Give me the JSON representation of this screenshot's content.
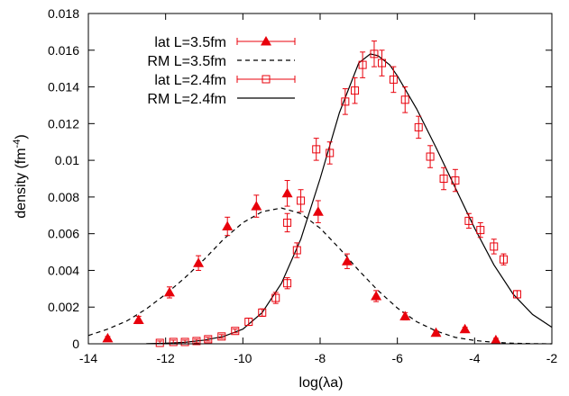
{
  "chart_data": {
    "type": "scatter",
    "xlabel": "log(λa)",
    "ylabel_main": "density (fm",
    "ylabel_sup": "-4",
    "ylabel_close": ")",
    "xlim": [
      -14,
      -2
    ],
    "ylim": [
      0,
      0.018
    ],
    "x_ticks": [
      -14,
      -12,
      -10,
      -8,
      -6,
      -4,
      -2
    ],
    "x_tick_labels": [
      "-14",
      "-12",
      "-10",
      "-8",
      "-6",
      "-4",
      "-2"
    ],
    "y_ticks": [
      0,
      0.002,
      0.004,
      0.006,
      0.008,
      0.01,
      0.012,
      0.014,
      0.016,
      0.018
    ],
    "y_tick_labels": [
      "0",
      "0.002",
      "0.004",
      "0.006",
      "0.008",
      "0.01",
      "0.012",
      "0.014",
      "0.016",
      "0.018"
    ],
    "legend_position": "top-left",
    "colors": {
      "lattice": "#e8000b",
      "curve": "#000000",
      "axis": "#000000"
    },
    "series": [
      {
        "name": "lat L=3.5fm",
        "kind": "points",
        "marker": "filled-triangle",
        "x": [
          -13.5,
          -12.7,
          -11.9,
          -11.15,
          -10.4,
          -9.65,
          -8.85,
          -8.05,
          -7.3,
          -6.55,
          -5.8,
          -5.0,
          -4.25,
          -3.45
        ],
        "y": [
          0.0003,
          0.0013,
          0.0028,
          0.0044,
          0.0064,
          0.0075,
          0.0082,
          0.0072,
          0.0045,
          0.0026,
          0.0015,
          0.0006,
          0.0008,
          0.0002
        ],
        "err": [
          0.0001,
          0.0002,
          0.0003,
          0.0004,
          0.0005,
          0.0006,
          0.0007,
          0.0006,
          0.0004,
          0.0003,
          0.0002,
          0.0001,
          0.0001,
          0.0001
        ]
      },
      {
        "name": "RM L=3.5fm",
        "kind": "line",
        "dash": "dashed",
        "x": [
          -14,
          -13.5,
          -13,
          -12.5,
          -12,
          -11.5,
          -11,
          -10.5,
          -10,
          -9.5,
          -9,
          -8.5,
          -8,
          -7.5,
          -7,
          -6.5,
          -6,
          -5.5,
          -5,
          -4.5,
          -4,
          -3.5,
          -3,
          -2.5,
          -2
        ],
        "y": [
          0.00045,
          0.0008,
          0.00125,
          0.0019,
          0.0027,
          0.0036,
          0.0046,
          0.0057,
          0.0066,
          0.0072,
          0.0074,
          0.0071,
          0.0063,
          0.0052,
          0.004,
          0.0029,
          0.00195,
          0.0012,
          0.0007,
          0.00035,
          0.00018,
          8e-05,
          3e-05,
          1e-05,
          0.0
        ]
      },
      {
        "name": "lat L=2.4fm",
        "kind": "points",
        "marker": "open-square",
        "x": [
          -12.15,
          -11.8,
          -11.5,
          -11.2,
          -10.9,
          -10.55,
          -10.2,
          -9.85,
          -9.5,
          -9.15,
          -8.85,
          -8.85,
          -8.6,
          -8.5,
          -8.1,
          -7.75,
          -7.35,
          -7.1,
          -6.9,
          -6.6,
          -6.4,
          -6.1,
          -5.8,
          -5.45,
          -5.15,
          -4.8,
          -4.5,
          -4.15,
          -3.85,
          -3.5,
          -3.25,
          -2.9
        ],
        "y": [
          5e-05,
          0.0001,
          0.0001,
          0.00015,
          0.00025,
          0.0004,
          0.0007,
          0.0012,
          0.0017,
          0.0025,
          0.0033,
          0.0066,
          0.0051,
          0.0078,
          0.0106,
          0.0104,
          0.0132,
          0.0138,
          0.0152,
          0.0158,
          0.0153,
          0.0144,
          0.0133,
          0.0118,
          0.0102,
          0.009,
          0.0089,
          0.0067,
          0.0062,
          0.0053,
          0.0046,
          0.0027
        ],
        "err": [
          0.0001,
          0.0001,
          0.0001,
          0.0001,
          0.0001,
          0.0001,
          0.0001,
          0.0002,
          0.0002,
          0.0003,
          0.0003,
          0.0005,
          0.0004,
          0.0006,
          0.0006,
          0.0006,
          0.0007,
          0.0007,
          0.0007,
          0.0007,
          0.0007,
          0.0007,
          0.0007,
          0.0006,
          0.0006,
          0.0006,
          0.0006,
          0.0004,
          0.0004,
          0.0004,
          0.0003,
          0.0002
        ]
      },
      {
        "name": "RM L=2.4fm",
        "kind": "line",
        "dash": "solid",
        "x": [
          -12.5,
          -12,
          -11.5,
          -11,
          -10.5,
          -10,
          -9.5,
          -9,
          -8.5,
          -8,
          -7.5,
          -7,
          -6.7,
          -6.5,
          -6.2,
          -6,
          -5.5,
          -5,
          -4.5,
          -4,
          -3.5,
          -3,
          -2.5,
          -2
        ],
        "y": [
          1e-05,
          3e-05,
          8e-05,
          0.0002,
          0.0004,
          0.0008,
          0.0017,
          0.0033,
          0.0057,
          0.009,
          0.0126,
          0.0153,
          0.0158,
          0.0157,
          0.0152,
          0.0146,
          0.0128,
          0.0107,
          0.0085,
          0.0063,
          0.0043,
          0.0027,
          0.0016,
          0.0009
        ]
      }
    ]
  }
}
